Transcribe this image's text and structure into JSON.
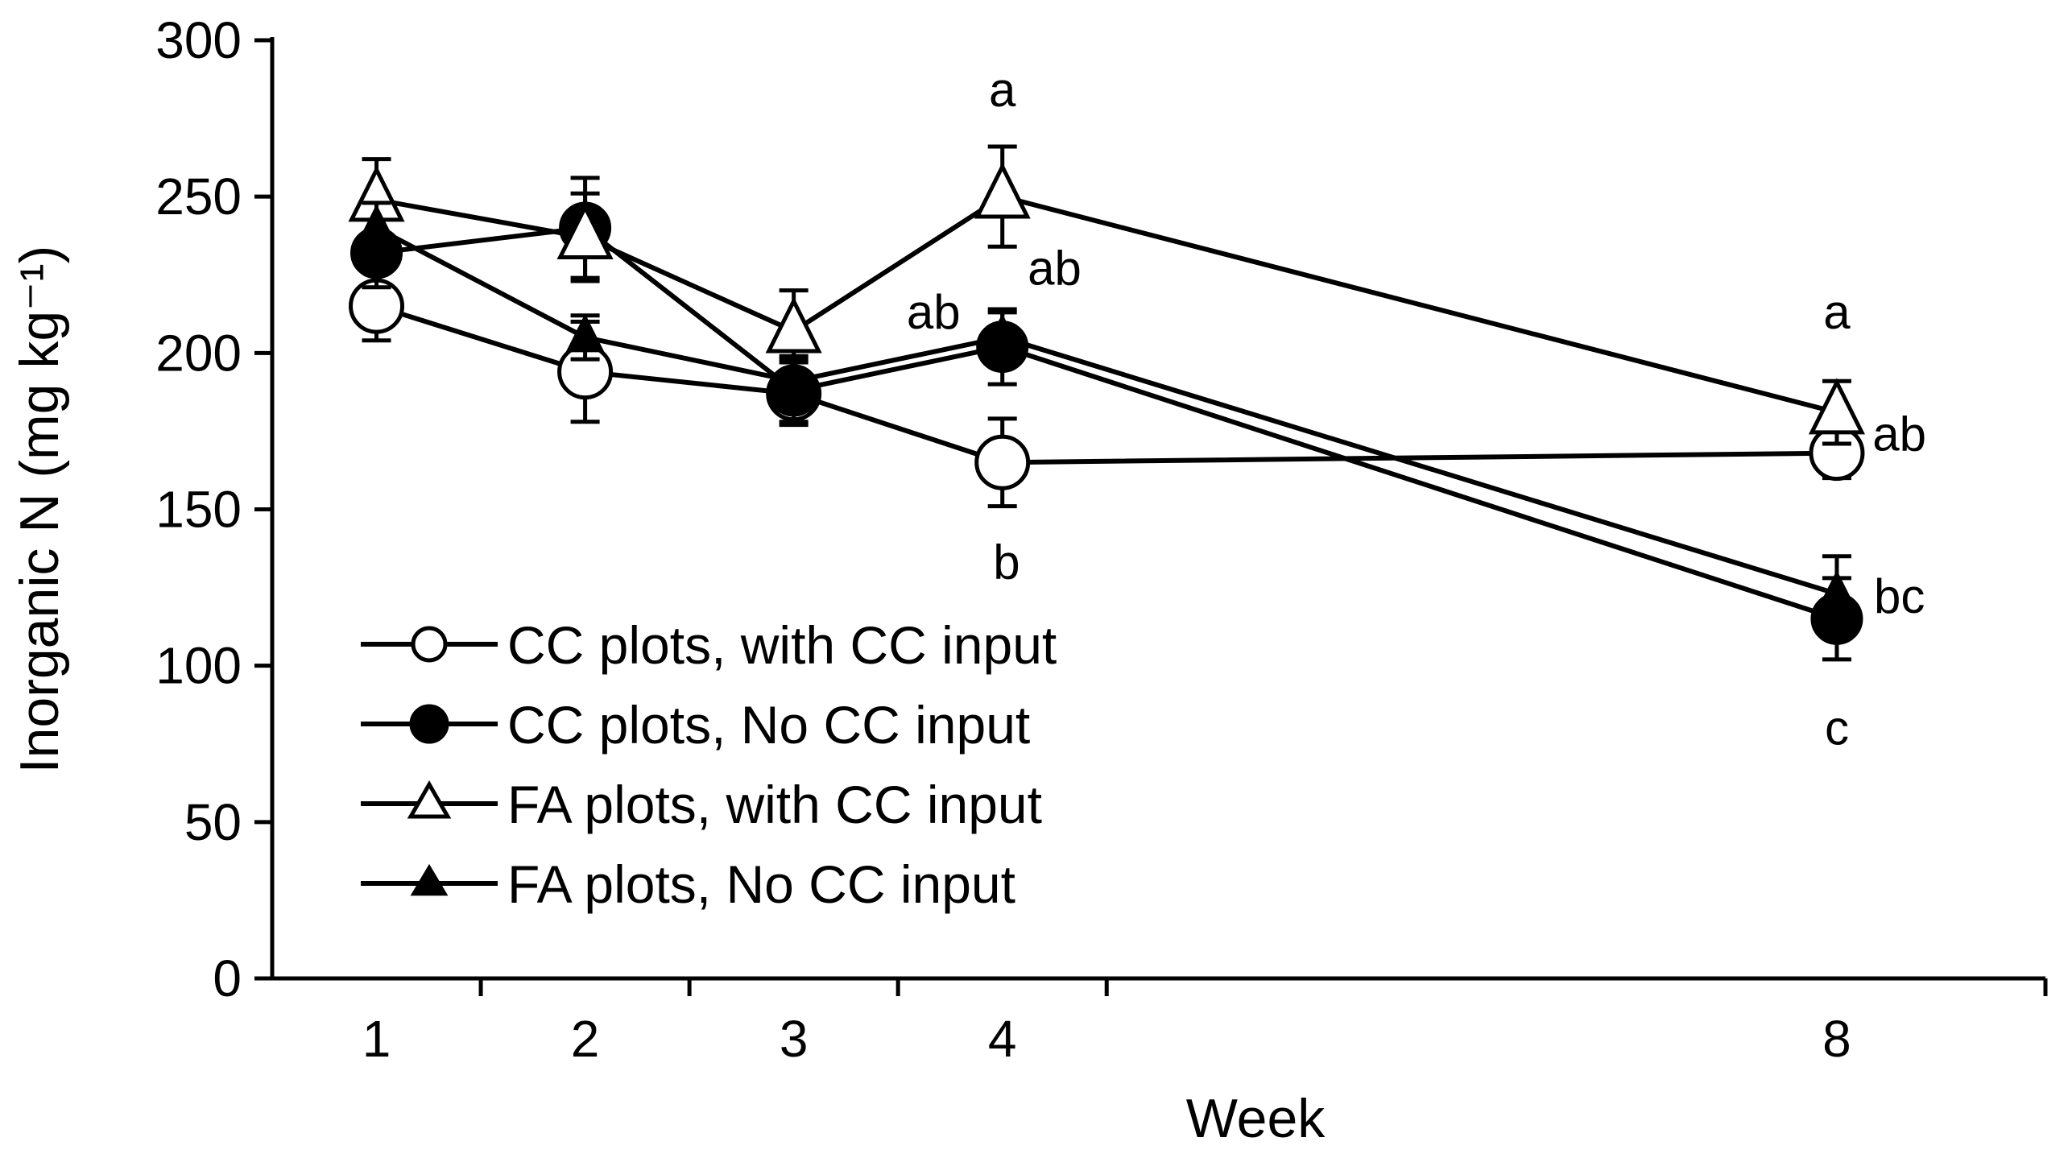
{
  "chart_data": {
    "type": "line",
    "title": "",
    "xlabel": "Week",
    "ylabel": "Inorganic N (mg kg⁻¹)",
    "x": [
      1,
      2,
      3,
      4,
      8
    ],
    "x_tick_labels": [
      "1",
      "2",
      "3",
      "4",
      "8"
    ],
    "xlim": [
      0.5,
      9
    ],
    "ylim": [
      0,
      300
    ],
    "y_ticks": [
      0,
      50,
      100,
      150,
      200,
      250,
      300
    ],
    "y_tick_labels": [
      "0",
      "50",
      "100",
      "150",
      "200",
      "250",
      "300"
    ],
    "grid": false,
    "legend_position": "bottom-left",
    "series": [
      {
        "name": "CC plots, with CC input",
        "marker": "circle",
        "filled": false,
        "values": [
          215,
          194,
          187,
          165,
          168
        ],
        "errors": [
          11,
          16,
          10,
          14,
          8
        ]
      },
      {
        "name": "CC plots, No CC input",
        "marker": "circle",
        "filled": true,
        "values": [
          232,
          240,
          188,
          202,
          115
        ],
        "errors": [
          11,
          16,
          10,
          12,
          13
        ]
      },
      {
        "name": "FA plots, with CC input",
        "marker": "triangle",
        "filled": false,
        "values": [
          249,
          237,
          207,
          250,
          181
        ],
        "errors": [
          13,
          14,
          13,
          16,
          10
        ]
      },
      {
        "name": "FA plots, No CC input",
        "marker": "triangle",
        "filled": true,
        "values": [
          240,
          205,
          191,
          205,
          123
        ],
        "errors": [
          8,
          7,
          8,
          8,
          12
        ]
      }
    ],
    "annotations": [
      {
        "text": "a",
        "x": 4,
        "y": 284
      },
      {
        "text": "ab",
        "x": 4.25,
        "y": 227
      },
      {
        "text": "ab",
        "x": 3.67,
        "y": 213
      },
      {
        "text": "b",
        "x": 4.02,
        "y": 133
      },
      {
        "text": "a",
        "x": 8,
        "y": 213
      },
      {
        "text": "ab",
        "x": 8.3,
        "y": 174
      },
      {
        "text": "bc",
        "x": 8.3,
        "y": 122
      },
      {
        "text": "c",
        "x": 8,
        "y": 80
      }
    ]
  }
}
